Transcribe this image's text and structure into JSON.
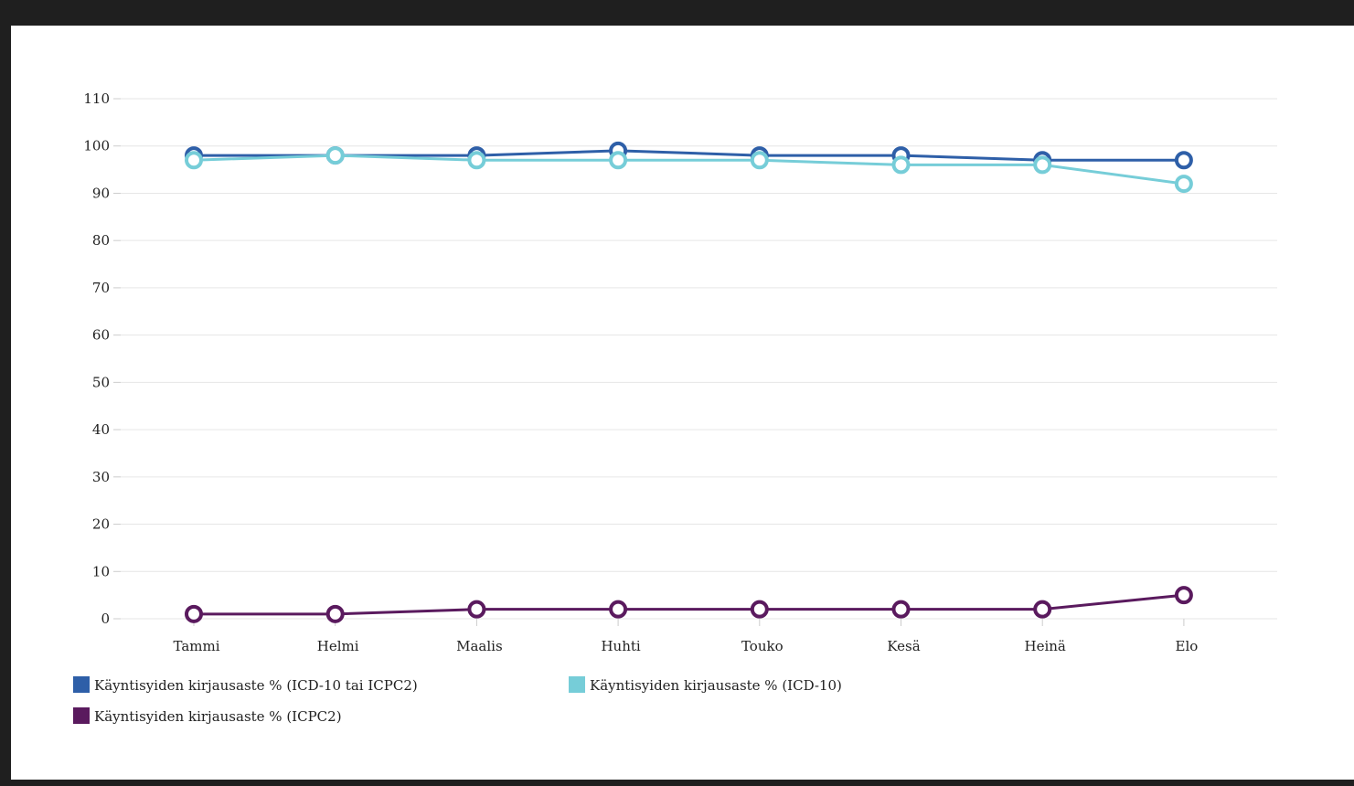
{
  "chart_data": {
    "type": "line",
    "categories": [
      "Tammi",
      "Helmi",
      "Maalis",
      "Huhti",
      "Touko",
      "Kesä",
      "Heinä",
      "Elo"
    ],
    "ylim": [
      0,
      110
    ],
    "yticks": [
      0,
      10,
      20,
      30,
      40,
      50,
      60,
      70,
      80,
      90,
      100,
      110
    ],
    "grid": true,
    "legend_position": "bottom-left",
    "series": [
      {
        "name": "Käyntisyiden kirjausaste % (ICD-10 tai ICPC2)",
        "color": "#2e5fa8",
        "values": [
          98,
          98,
          98,
          99,
          98,
          98,
          97,
          97
        ]
      },
      {
        "name": "Käyntisyiden kirjausaste % (ICD-10)",
        "color": "#76cdd8",
        "values": [
          97,
          98,
          97,
          97,
          97,
          96,
          96,
          92
        ]
      },
      {
        "name": "Käyntisyiden kirjausaste % (ICPC2)",
        "color": "#5a1a5e",
        "values": [
          1,
          1,
          2,
          2,
          2,
          2,
          2,
          5
        ]
      }
    ]
  }
}
